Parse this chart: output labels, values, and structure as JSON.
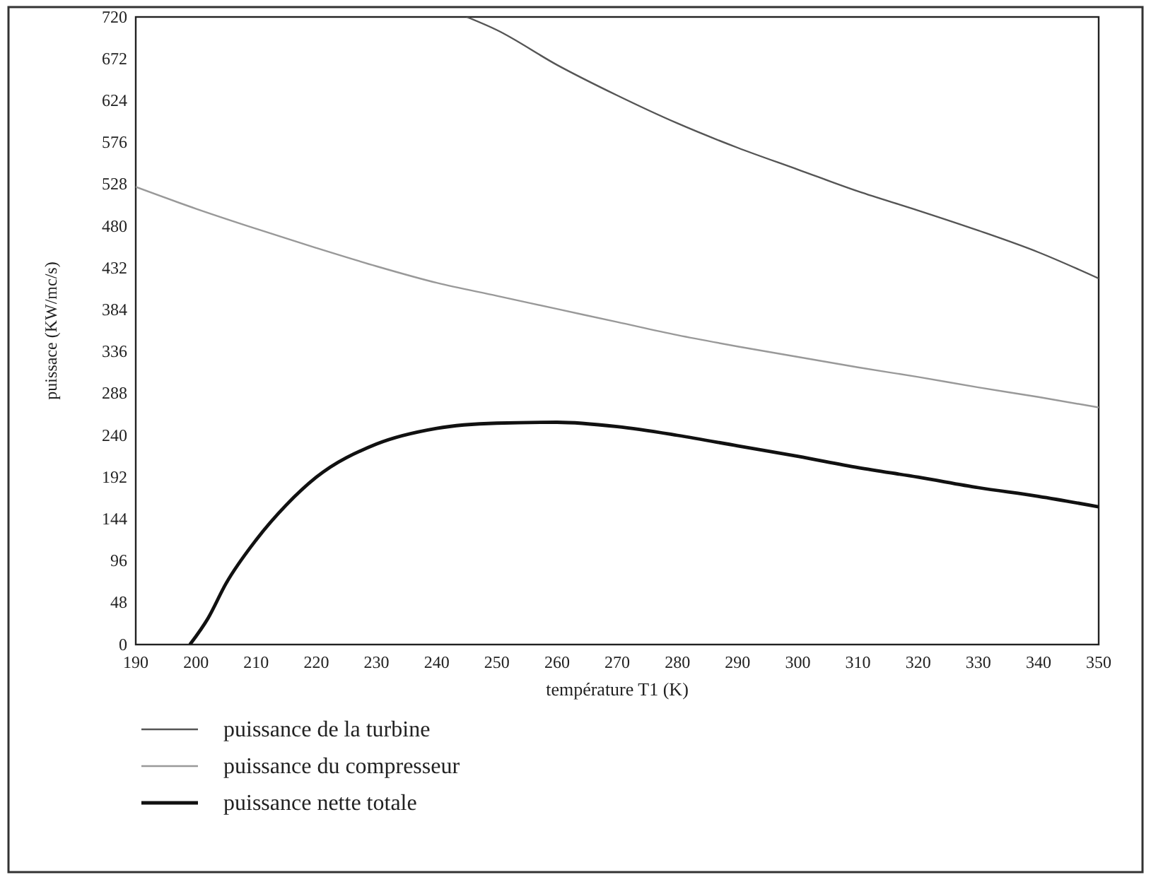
{
  "chart_data": {
    "type": "line",
    "xlabel": "température T1 (K)",
    "ylabel": "puissace (KW/mc/s)",
    "xlim": [
      190,
      350
    ],
    "xticks": [
      190,
      200,
      210,
      220,
      230,
      240,
      250,
      260,
      270,
      280,
      290,
      300,
      310,
      320,
      330,
      340,
      350
    ],
    "ylim": [
      0,
      720
    ],
    "yticks": [
      0,
      48,
      96,
      144,
      192,
      240,
      288,
      336,
      384,
      432,
      480,
      528,
      576,
      624,
      672,
      720
    ],
    "grid": false,
    "legend": "bottom",
    "line_style": "solid",
    "series": [
      {
        "name": "puissance de la turbine",
        "color": "#555555",
        "x": [
          245,
          250,
          260,
          270,
          280,
          290,
          300,
          310,
          320,
          330,
          340,
          350
        ],
        "values": [
          720,
          705,
          665,
          630,
          598,
          570,
          545,
          520,
          498,
          475,
          450,
          420
        ]
      },
      {
        "name": "puissance du compresseur",
        "color": "#999999",
        "x": [
          190,
          200,
          210,
          220,
          230,
          240,
          250,
          260,
          270,
          280,
          290,
          300,
          310,
          320,
          330,
          340,
          350
        ],
        "values": [
          525,
          500,
          477,
          455,
          434,
          415,
          400,
          385,
          370,
          355,
          342,
          330,
          318,
          307,
          295,
          284,
          272
        ]
      },
      {
        "name": "puissance nette totale",
        "color": "#111111",
        "x": [
          199,
          202,
          205,
          210,
          215,
          220,
          230,
          240,
          250,
          260,
          270,
          280,
          290,
          300,
          310,
          320,
          330,
          340,
          350
        ],
        "values": [
          0,
          30,
          70,
          120,
          160,
          192,
          230,
          248,
          254,
          255,
          250,
          240,
          228,
          216,
          203,
          192,
          180,
          170,
          158
        ]
      }
    ]
  }
}
